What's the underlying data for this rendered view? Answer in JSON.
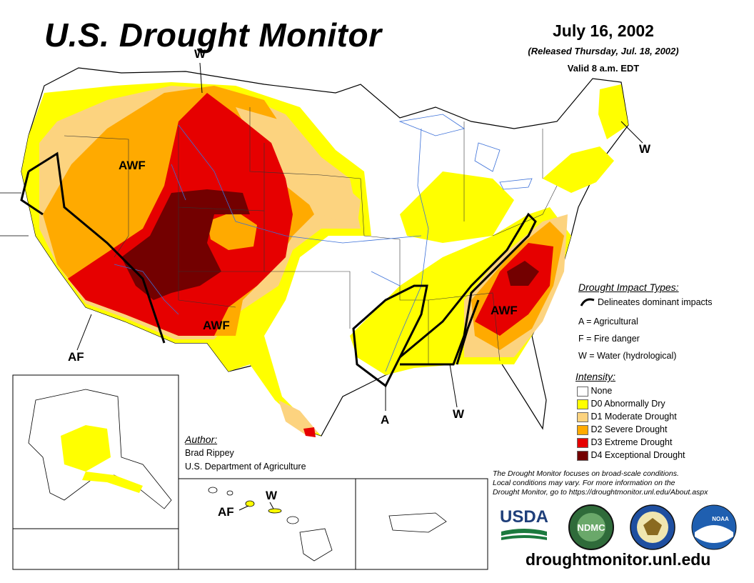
{
  "header": {
    "title": "U.S. Drought Monitor",
    "date": "July 16, 2002",
    "released": "(Released Thursday, Jul. 18, 2002)",
    "valid": "Valid 8 a.m. EDT"
  },
  "map_labels": {
    "west_w": "W",
    "awf_northwest": "AWF",
    "awf_southwest": "AWF",
    "af_southwest": "AF",
    "awf_southeast": "AWF",
    "a_south": "A",
    "w_southeast": "W",
    "w_northeast": "W",
    "hawaii_af": "AF",
    "hawaii_w": "W"
  },
  "impact_legend": {
    "title": "Drought Impact Types:",
    "line_desc": "Delineates dominant impacts",
    "agricultural": "A = Agricultural",
    "fire": "F = Fire danger",
    "water": "W = Water (hydrological)"
  },
  "intensity_legend": {
    "title": "Intensity:",
    "items": [
      {
        "label": "None",
        "color": "#ffffff"
      },
      {
        "label": "D0 Abnormally Dry",
        "color": "#ffff00"
      },
      {
        "label": "D1 Moderate Drought",
        "color": "#fcd37f"
      },
      {
        "label": "D2 Severe Drought",
        "color": "#ffaa00"
      },
      {
        "label": "D3 Extreme Drought",
        "color": "#e60000"
      },
      {
        "label": "D4 Exceptional Drought",
        "color": "#730000"
      }
    ]
  },
  "author": {
    "title": "Author:",
    "name": "Brad Rippey",
    "org": "U.S. Department of Agriculture"
  },
  "note": {
    "line1": "The Drought Monitor focuses on broad-scale conditions.",
    "line2": "Local conditions may vary. For more information on the",
    "line3": "Drought Monitor, go to https://droughtmonitor.unl.edu/About.aspx"
  },
  "logos": {
    "usda": "USDA",
    "ndmc": "NDMC",
    "noaa": "NOAA"
  },
  "footer": {
    "url": "droughtmonitor.unl.edu"
  }
}
